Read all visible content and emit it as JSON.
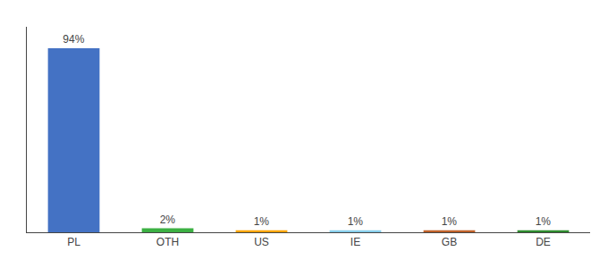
{
  "chart_data": {
    "type": "bar",
    "categories": [
      "PL",
      "OTH",
      "US",
      "IE",
      "GB",
      "DE"
    ],
    "values": [
      94,
      2,
      1,
      1,
      1,
      1
    ],
    "value_labels": [
      "94%",
      "2%",
      "1%",
      "1%",
      "1%",
      "1%"
    ],
    "colors": [
      "#4472C4",
      "#3CB043",
      "#FFA500",
      "#87CEEB",
      "#C0622A",
      "#2E8B2E"
    ],
    "ylim": [
      0,
      105
    ],
    "grid": false,
    "tick_labels": "x"
  }
}
